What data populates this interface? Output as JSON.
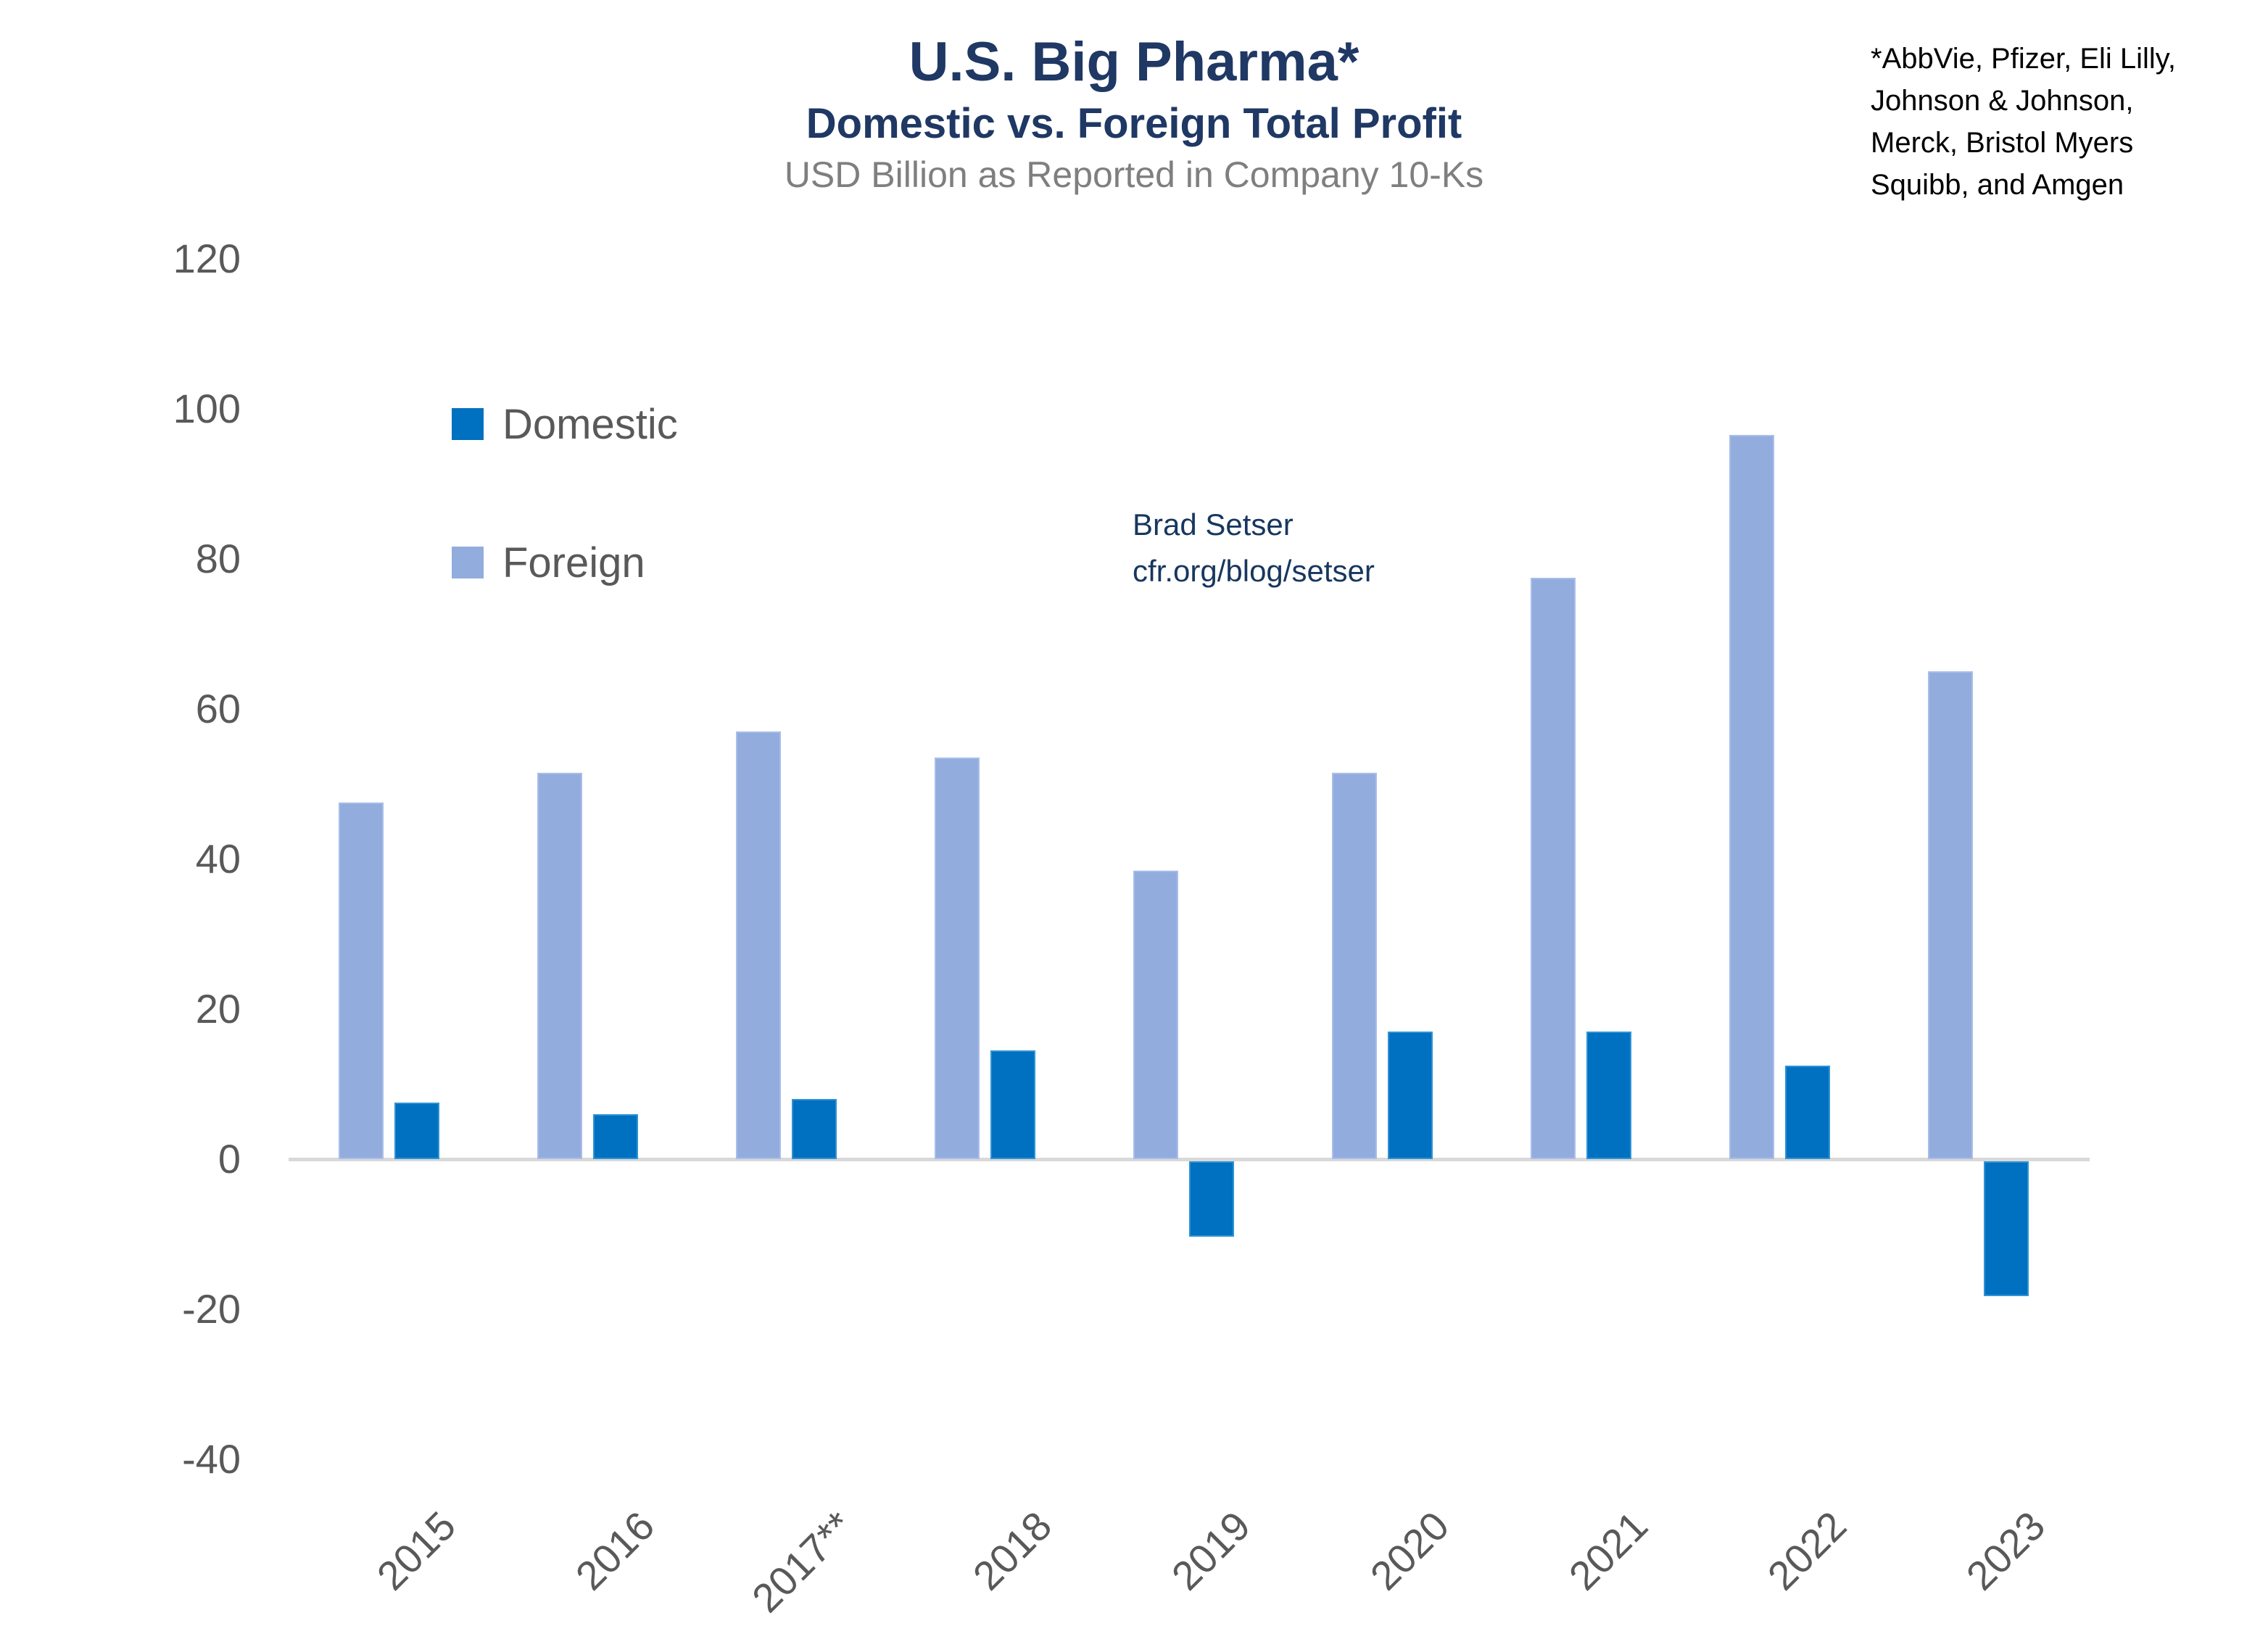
{
  "header": {
    "title": "U.S. Big Pharma*",
    "subtitle": "Domestic vs. Foreign Total Profit",
    "units_note": "USD Billion as Reported in Company 10-Ks"
  },
  "footnote": {
    "lines": [
      "*AbbVie, Pfizer, Eli Lilly,",
      "Johnson & Johnson,",
      "Merck, Bristol Myers",
      "Squibb, and Amgen"
    ]
  },
  "attribution": {
    "line1": "Brad Setser",
    "line2": "cfr.org/blog/setser"
  },
  "legend": [
    {
      "label": "Domestic",
      "color": "#0070C0"
    },
    {
      "label": "Foreign",
      "color": "#92ACDE"
    }
  ],
  "colors": {
    "domestic": "#0070C0",
    "foreign": "#92ACDE",
    "title_navy": "#1F3864",
    "attribution_navy": "#17375E",
    "axis_gray": "#D9D9D9",
    "tick_gray": "#595959",
    "note_gray": "#7F7F7F"
  },
  "chart_data": {
    "type": "bar",
    "title": "U.S. Big Pharma* — Domestic vs. Foreign Total Profit",
    "xlabel": "",
    "ylabel": "USD Billion as Reported in Company 10-Ks",
    "categories": [
      "2015",
      "2016",
      "2017**",
      "2018",
      "2019",
      "2020",
      "2021",
      "2022",
      "2023"
    ],
    "series": [
      {
        "name": "Foreign",
        "values": [
          47.5,
          51.5,
          57,
          53.5,
          38.5,
          51.5,
          77.5,
          96.5,
          65
        ]
      },
      {
        "name": "Domestic",
        "values": [
          7.5,
          6,
          8,
          14.5,
          -10,
          17,
          17,
          12.5,
          -18
        ]
      }
    ],
    "ylim": [
      -40,
      120
    ],
    "y_ticks": [
      120,
      100,
      80,
      60,
      40,
      20,
      0,
      -20,
      -40
    ],
    "grid": false,
    "legend_position": "inside-upper-left",
    "bar_order_in_group": [
      "Foreign",
      "Domestic"
    ]
  }
}
